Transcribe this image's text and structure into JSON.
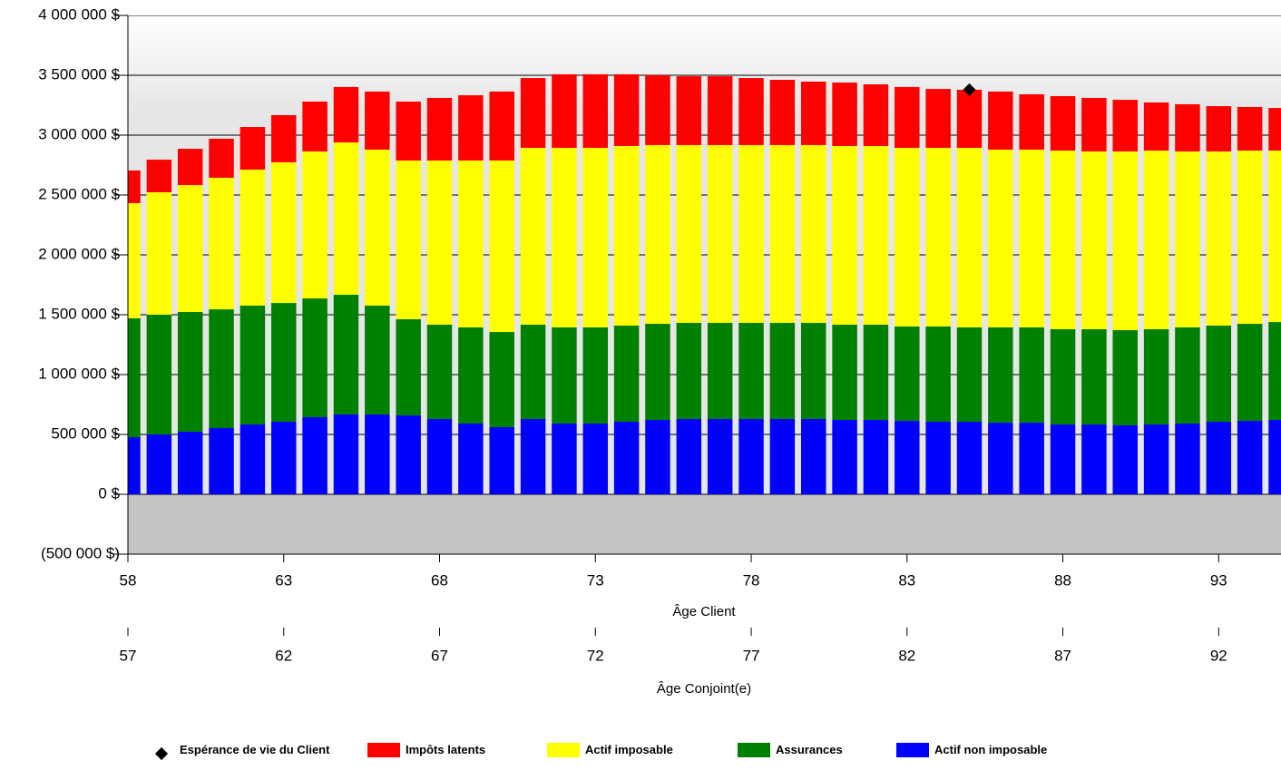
{
  "chart_data": {
    "type": "bar",
    "stacked": true,
    "x": [
      58,
      59,
      60,
      61,
      62,
      63,
      64,
      65,
      66,
      67,
      68,
      69,
      70,
      71,
      72,
      73,
      74,
      75,
      76,
      77,
      78,
      79,
      80,
      81,
      82,
      83,
      84,
      85,
      86,
      87,
      88,
      89,
      90,
      91,
      92,
      93,
      94,
      95
    ],
    "series": [
      {
        "name": "Espérance de vie du Client",
        "type": "scatter",
        "color": "#000000",
        "x": [
          85
        ],
        "values": [
          3380000
        ]
      },
      {
        "name": "Impôts latents",
        "color": "#ff0000",
        "values": [
          273000,
          272000,
          303000,
          326000,
          356000,
          394000,
          416000,
          463000,
          485000,
          492000,
          523000,
          545000,
          576000,
          583000,
          614000,
          614000,
          599000,
          583000,
          575000,
          575000,
          560000,
          545000,
          530000,
          530000,
          515000,
          508000,
          492000,
          485000,
          485000,
          462000,
          455000,
          447000,
          431000,
          402000,
          394000,
          378000,
          364000,
          356000
        ]
      },
      {
        "name": "Actif imposable",
        "color": "#ffff00",
        "values": [
          962000,
          1023000,
          1060000,
          1099000,
          1136000,
          1175000,
          1228000,
          1272000,
          1303000,
          1326000,
          1371000,
          1394000,
          1432000,
          1477000,
          1500000,
          1500000,
          1500000,
          1493000,
          1485000,
          1485000,
          1485000,
          1485000,
          1485000,
          1492000,
          1492000,
          1492000,
          1492000,
          1500000,
          1485000,
          1485000,
          1492000,
          1485000,
          1493000,
          1492000,
          1470000,
          1455000,
          1447000,
          1432000
        ]
      },
      {
        "name": "Assurances",
        "color": "#008000",
        "values": [
          993000,
          1000000,
          1000000,
          992000,
          993000,
          992000,
          992000,
          1000000,
          909000,
          803000,
          788000,
          803000,
          795000,
          788000,
          803000,
          803000,
          803000,
          803000,
          803000,
          803000,
          803000,
          803000,
          803000,
          796000,
          796000,
          788000,
          796000,
          788000,
          796000,
          796000,
          796000,
          796000,
          795000,
          796000,
          803000,
          803000,
          810000,
          818000
        ]
      },
      {
        "name": "Actif non imposable",
        "color": "#0000ff",
        "values": [
          477000,
          500000,
          523000,
          553000,
          583000,
          606000,
          644000,
          667000,
          667000,
          659000,
          629000,
          591000,
          561000,
          629000,
          591000,
          591000,
          606000,
          621000,
          629000,
          629000,
          629000,
          629000,
          629000,
          621000,
          621000,
          614000,
          606000,
          606000,
          598000,
          598000,
          583000,
          583000,
          576000,
          583000,
          591000,
          606000,
          614000,
          621000
        ]
      }
    ],
    "xlabel": "Âge Client",
    "xlim": [
      58,
      95
    ],
    "xticks": [
      58,
      63,
      68,
      73,
      78,
      83,
      88,
      93
    ],
    "x2label": "Âge Conjoint(e)",
    "x2lim": [
      57,
      94
    ],
    "x2ticks": [
      57,
      62,
      67,
      72,
      77,
      82,
      87,
      92
    ],
    "ylim": [
      -500000,
      4000000
    ],
    "yticks": [
      {
        "value": -500000,
        "label": "(500 000 $)"
      },
      {
        "value": 0,
        "label": "0 $"
      },
      {
        "value": 500000,
        "label": "500 000 $"
      },
      {
        "value": 1000000,
        "label": "1 000 000 $"
      },
      {
        "value": 1500000,
        "label": "1 500 000 $"
      },
      {
        "value": 2000000,
        "label": "2 000 000 $"
      },
      {
        "value": 2500000,
        "label": "2 500 000 $"
      },
      {
        "value": 3000000,
        "label": "3 000 000 $"
      },
      {
        "value": 3500000,
        "label": "3 500 000 $"
      },
      {
        "value": 4000000,
        "label": "4 000 000 $"
      }
    ],
    "grid": true,
    "legend": "bottom"
  }
}
